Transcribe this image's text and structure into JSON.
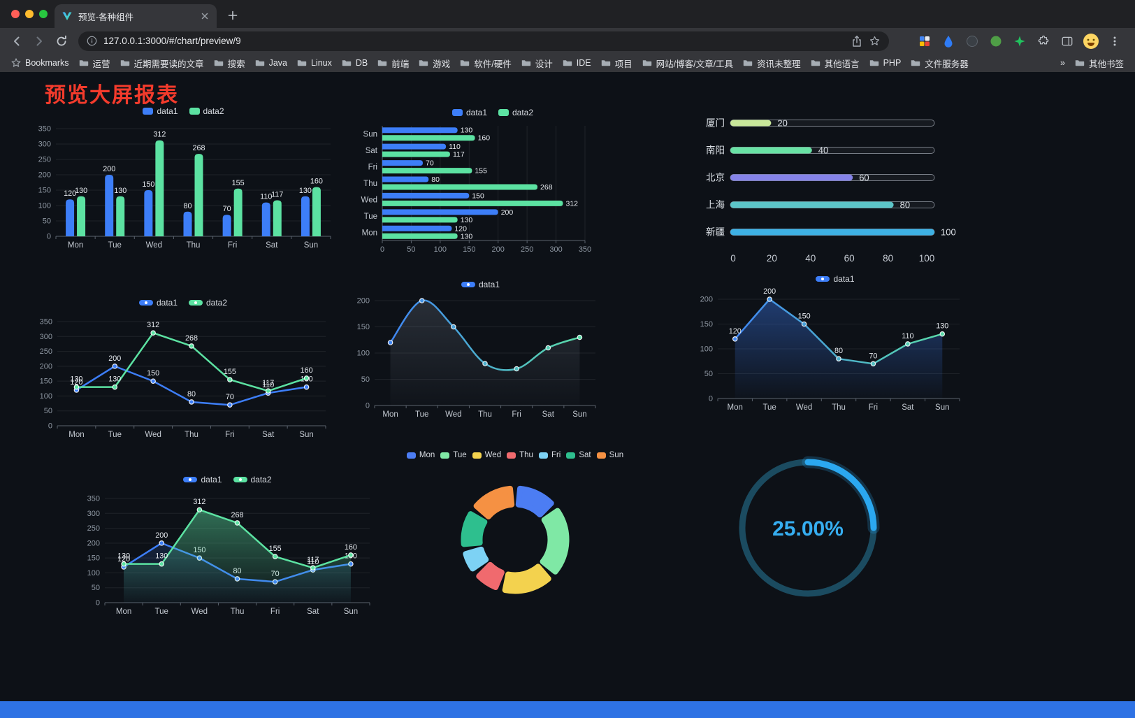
{
  "browser": {
    "tab_title": "预览-各种组件",
    "url": "127.0.0.1:3000/#/chart/preview/9",
    "traffic_lights": [
      "#ff5f57",
      "#febc2e",
      "#28c840"
    ],
    "bookmarks_bar": {
      "star_item": "Bookmarks",
      "folders": [
        "运营",
        "近期需要读的文章",
        "搜索",
        "Java",
        "Linux",
        "DB",
        "前端",
        "游戏",
        "软件/硬件",
        "设计",
        "IDE",
        "项目",
        "网站/博客/文章/工具",
        "资讯未整理",
        "其他语言",
        "PHP",
        "文件服务器"
      ],
      "overflow_chevron": "»",
      "other_bookmarks": "其他书签"
    }
  },
  "page": {
    "title": "预览大屏报表",
    "title_color": "#f43b2c",
    "background": "#0d1117",
    "footer_color": "#2e72e4"
  },
  "chart_data": [
    {
      "id": "grouped-bar-vertical",
      "type": "bar",
      "categories": [
        "Mon",
        "Tue",
        "Wed",
        "Thu",
        "Fri",
        "Sat",
        "Sun"
      ],
      "series": [
        {
          "name": "data1",
          "color": "#3D7EF8",
          "values": [
            120,
            200,
            150,
            80,
            70,
            110,
            130
          ]
        },
        {
          "name": "data2",
          "color": "#5CE2A2",
          "values": [
            130,
            130,
            312,
            268,
            155,
            117,
            160
          ]
        }
      ],
      "ylim": [
        0,
        350
      ],
      "ytick_step": 50,
      "value_labels": true
    },
    {
      "id": "grouped-bar-horizontal",
      "type": "bar-horizontal",
      "categories": [
        "Mon",
        "Tue",
        "Wed",
        "Thu",
        "Fri",
        "Sat",
        "Sun"
      ],
      "series": [
        {
          "name": "data1",
          "color": "#3D7EF8",
          "values": [
            120,
            200,
            150,
            80,
            70,
            110,
            130
          ]
        },
        {
          "name": "data2",
          "color": "#5CE2A2",
          "values": [
            130,
            130,
            312,
            268,
            155,
            117,
            160
          ]
        }
      ],
      "xlim": [
        0,
        350
      ],
      "xtick_step": 50,
      "value_labels": true
    },
    {
      "id": "city-progress",
      "type": "progress",
      "max": 100,
      "xticks": [
        0,
        20,
        40,
        60,
        80,
        100
      ],
      "rows": [
        {
          "label": "厦门",
          "value": 20,
          "color": "#C8E79A"
        },
        {
          "label": "南阳",
          "value": 40,
          "color": "#69E2A5"
        },
        {
          "label": "北京",
          "value": 60,
          "color": "#8583E8"
        },
        {
          "label": "上海",
          "value": 80,
          "color": "#5CC5C8"
        },
        {
          "label": "新疆",
          "value": 100,
          "color": "#3EB1E4"
        }
      ]
    },
    {
      "id": "multi-line",
      "type": "line",
      "categories": [
        "Mon",
        "Tue",
        "Wed",
        "Thu",
        "Fri",
        "Sat",
        "Sun"
      ],
      "series": [
        {
          "name": "data1",
          "color": "#3D7EF8",
          "values": [
            120,
            200,
            150,
            80,
            70,
            110,
            130
          ]
        },
        {
          "name": "data2",
          "color": "#5CE2A2",
          "values": [
            130,
            130,
            312,
            268,
            155,
            117,
            160
          ]
        }
      ],
      "ylim": [
        0,
        350
      ],
      "ytick_step": 50,
      "value_labels": true
    },
    {
      "id": "gradient-smooth-line",
      "type": "line",
      "categories": [
        "Mon",
        "Tue",
        "Wed",
        "Thu",
        "Fri",
        "Sat",
        "Sun"
      ],
      "series": [
        {
          "name": "data1",
          "color_start": "#3D7EF8",
          "color_end": "#5CE2A2",
          "smooth": true,
          "shadow": true,
          "values": [
            120,
            200,
            150,
            80,
            70,
            110,
            130
          ]
        }
      ],
      "ylim": [
        0,
        200
      ],
      "ytick_step": 50,
      "value_labels": false
    },
    {
      "id": "gradient-area-line",
      "type": "line",
      "categories": [
        "Mon",
        "Tue",
        "Wed",
        "Thu",
        "Fri",
        "Sat",
        "Sun"
      ],
      "series": [
        {
          "name": "data1",
          "color_start": "#3D7EF8",
          "color_end": "#5CE2A2",
          "area": true,
          "area_opacity": 0.4,
          "values": [
            120,
            200,
            150,
            80,
            70,
            110,
            130
          ]
        }
      ],
      "ylim": [
        0,
        200
      ],
      "ytick_step": 50,
      "value_labels": true
    },
    {
      "id": "area-multi-line",
      "type": "line",
      "categories": [
        "Mon",
        "Tue",
        "Wed",
        "Thu",
        "Fri",
        "Sat",
        "Sun"
      ],
      "series": [
        {
          "name": "data1",
          "color": "#3D7EF8",
          "area": true,
          "area_opacity": 0.28,
          "values": [
            120,
            200,
            150,
            80,
            70,
            110,
            130
          ]
        },
        {
          "name": "data2",
          "color": "#5CE2A2",
          "area": true,
          "area_opacity": 0.5,
          "values": [
            130,
            130,
            312,
            268,
            155,
            117,
            160
          ]
        }
      ],
      "ylim": [
        0,
        350
      ],
      "ytick_step": 50,
      "value_labels": true
    },
    {
      "id": "weekday-donut",
      "type": "pie",
      "categories": [
        "Mon",
        "Tue",
        "Wed",
        "Thu",
        "Fri",
        "Sat",
        "Sun"
      ],
      "values": [
        120,
        200,
        150,
        80,
        70,
        110,
        130
      ],
      "colors": [
        "#4C7DF3",
        "#7FE8A5",
        "#F3D24E",
        "#F06A6E",
        "#7DD2F4",
        "#2EBF8E",
        "#F59143"
      ]
    },
    {
      "id": "percent-gauge",
      "type": "gauge",
      "value": 25,
      "label": "25.00%",
      "color": "#2BA8F0",
      "track_color": "#1B4B60",
      "text_color": "#36AEF1"
    }
  ]
}
